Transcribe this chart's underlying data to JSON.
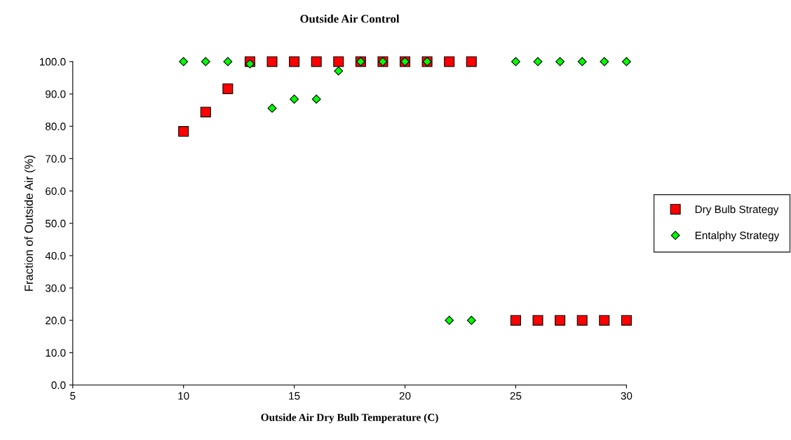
{
  "chart_data": {
    "type": "scatter",
    "title": "Outside Air Control",
    "xlabel": "Outside Air Dry Bulb Temperature (C)",
    "ylabel": "Fraction of Outside Air (%)",
    "xlim": [
      5,
      30
    ],
    "xticks": [
      5,
      10,
      15,
      20,
      25,
      30
    ],
    "ylim": [
      0,
      100
    ],
    "yticks": [
      {
        "value": 0,
        "label": "0.0"
      },
      {
        "value": 10,
        "label": "10.0"
      },
      {
        "value": 20,
        "label": "20.0"
      },
      {
        "value": 30,
        "label": "30.0"
      },
      {
        "value": 40,
        "label": "40.0"
      },
      {
        "value": 50,
        "label": "50.0"
      },
      {
        "value": 60,
        "label": "60.0"
      },
      {
        "value": 70,
        "label": "70.0"
      },
      {
        "value": 80,
        "label": "80.0"
      },
      {
        "value": 90,
        "label": "90.0"
      },
      {
        "value": 100,
        "label": "100.0"
      }
    ],
    "grid": false,
    "legend": "right",
    "series": [
      {
        "name": "Dry Bulb Strategy",
        "color": "#ff0000",
        "marker": "square",
        "x": [
          10,
          11,
          12,
          13,
          14,
          15,
          16,
          17,
          18,
          19,
          20,
          21,
          22,
          23,
          25,
          26,
          27,
          28,
          29,
          30
        ],
        "values": [
          78.4,
          84.4,
          91.6,
          100,
          100,
          100,
          100,
          100,
          100,
          100,
          100,
          100,
          100,
          100,
          20,
          20,
          20,
          20,
          20,
          20
        ]
      },
      {
        "name": "Entalphy Strategy",
        "color": "#00ff00",
        "marker": "diamond",
        "x": [
          10,
          11,
          12,
          13,
          14,
          15,
          16,
          17,
          18,
          19,
          20,
          21,
          22,
          23,
          25,
          26,
          27,
          28,
          29,
          30
        ],
        "values": [
          100,
          100,
          100,
          99.3,
          85.6,
          88.4,
          88.4,
          97.1,
          100,
          100,
          100,
          100,
          20,
          20,
          100,
          100,
          100,
          100,
          100,
          100
        ]
      }
    ]
  }
}
